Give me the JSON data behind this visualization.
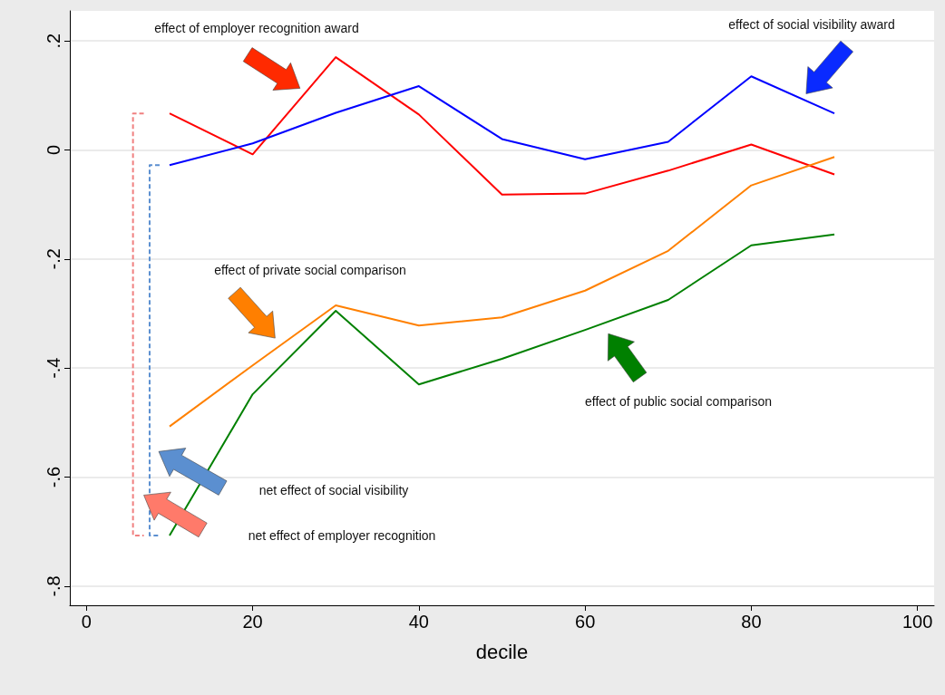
{
  "chart_data": {
    "type": "line",
    "xlabel": "decile",
    "x": [
      10,
      20,
      30,
      40,
      50,
      60,
      70,
      80,
      90
    ],
    "series": [
      {
        "color": "#ff0000",
        "values": [
          0.067,
          -0.008,
          0.17,
          0.065,
          -0.082,
          -0.08,
          -0.038,
          0.01,
          -0.045
        ]
      },
      {
        "color": "#0000ff",
        "values": [
          -0.028,
          0.012,
          0.068,
          0.117,
          0.02,
          -0.017,
          0.015,
          0.135,
          0.067
        ]
      },
      {
        "color": "#ff8000",
        "values": [
          -0.507,
          -0.395,
          -0.285,
          -0.322,
          -0.307,
          -0.258,
          -0.185,
          -0.065,
          -0.013
        ]
      },
      {
        "color": "#008000",
        "values": [
          -0.707,
          -0.448,
          -0.295,
          -0.43,
          -0.383,
          -0.33,
          -0.275,
          -0.175,
          -0.155
        ]
      },
      {
        "color": "#f08080",
        "line_style": "dashed",
        "x": [
          6.9,
          5.6,
          5.6,
          6.9
        ],
        "values": [
          0.067,
          0.067,
          -0.707,
          -0.707
        ]
      },
      {
        "color": "#5b8fd0",
        "line_style": "dashed",
        "x": [
          8.8,
          7.6,
          7.6,
          8.8
        ],
        "values": [
          -0.028,
          -0.028,
          -0.707,
          -0.707
        ]
      }
    ],
    "xlim": [
      -2,
      102
    ],
    "xticks": [
      0,
      20,
      40,
      60,
      80,
      100
    ],
    "ylim": [
      -0.835,
      0.255
    ],
    "yticks": [
      {
        "value": -0.8,
        "label": "-.8"
      },
      {
        "value": -0.6,
        "label": "-.6"
      },
      {
        "value": -0.4,
        "label": "-.4"
      },
      {
        "value": -0.2,
        "label": "-.2"
      },
      0,
      {
        "value": 0.2,
        "label": ".2"
      }
    ],
    "grid": "y",
    "marker": "none",
    "line_style": "solid",
    "annotations": [
      "effect of employer recognition award",
      "effect of social visibility award",
      "effect of private social comparison",
      "effect of public social comparison",
      "net effect of social visibility",
      "net effect of employer recognition"
    ]
  }
}
